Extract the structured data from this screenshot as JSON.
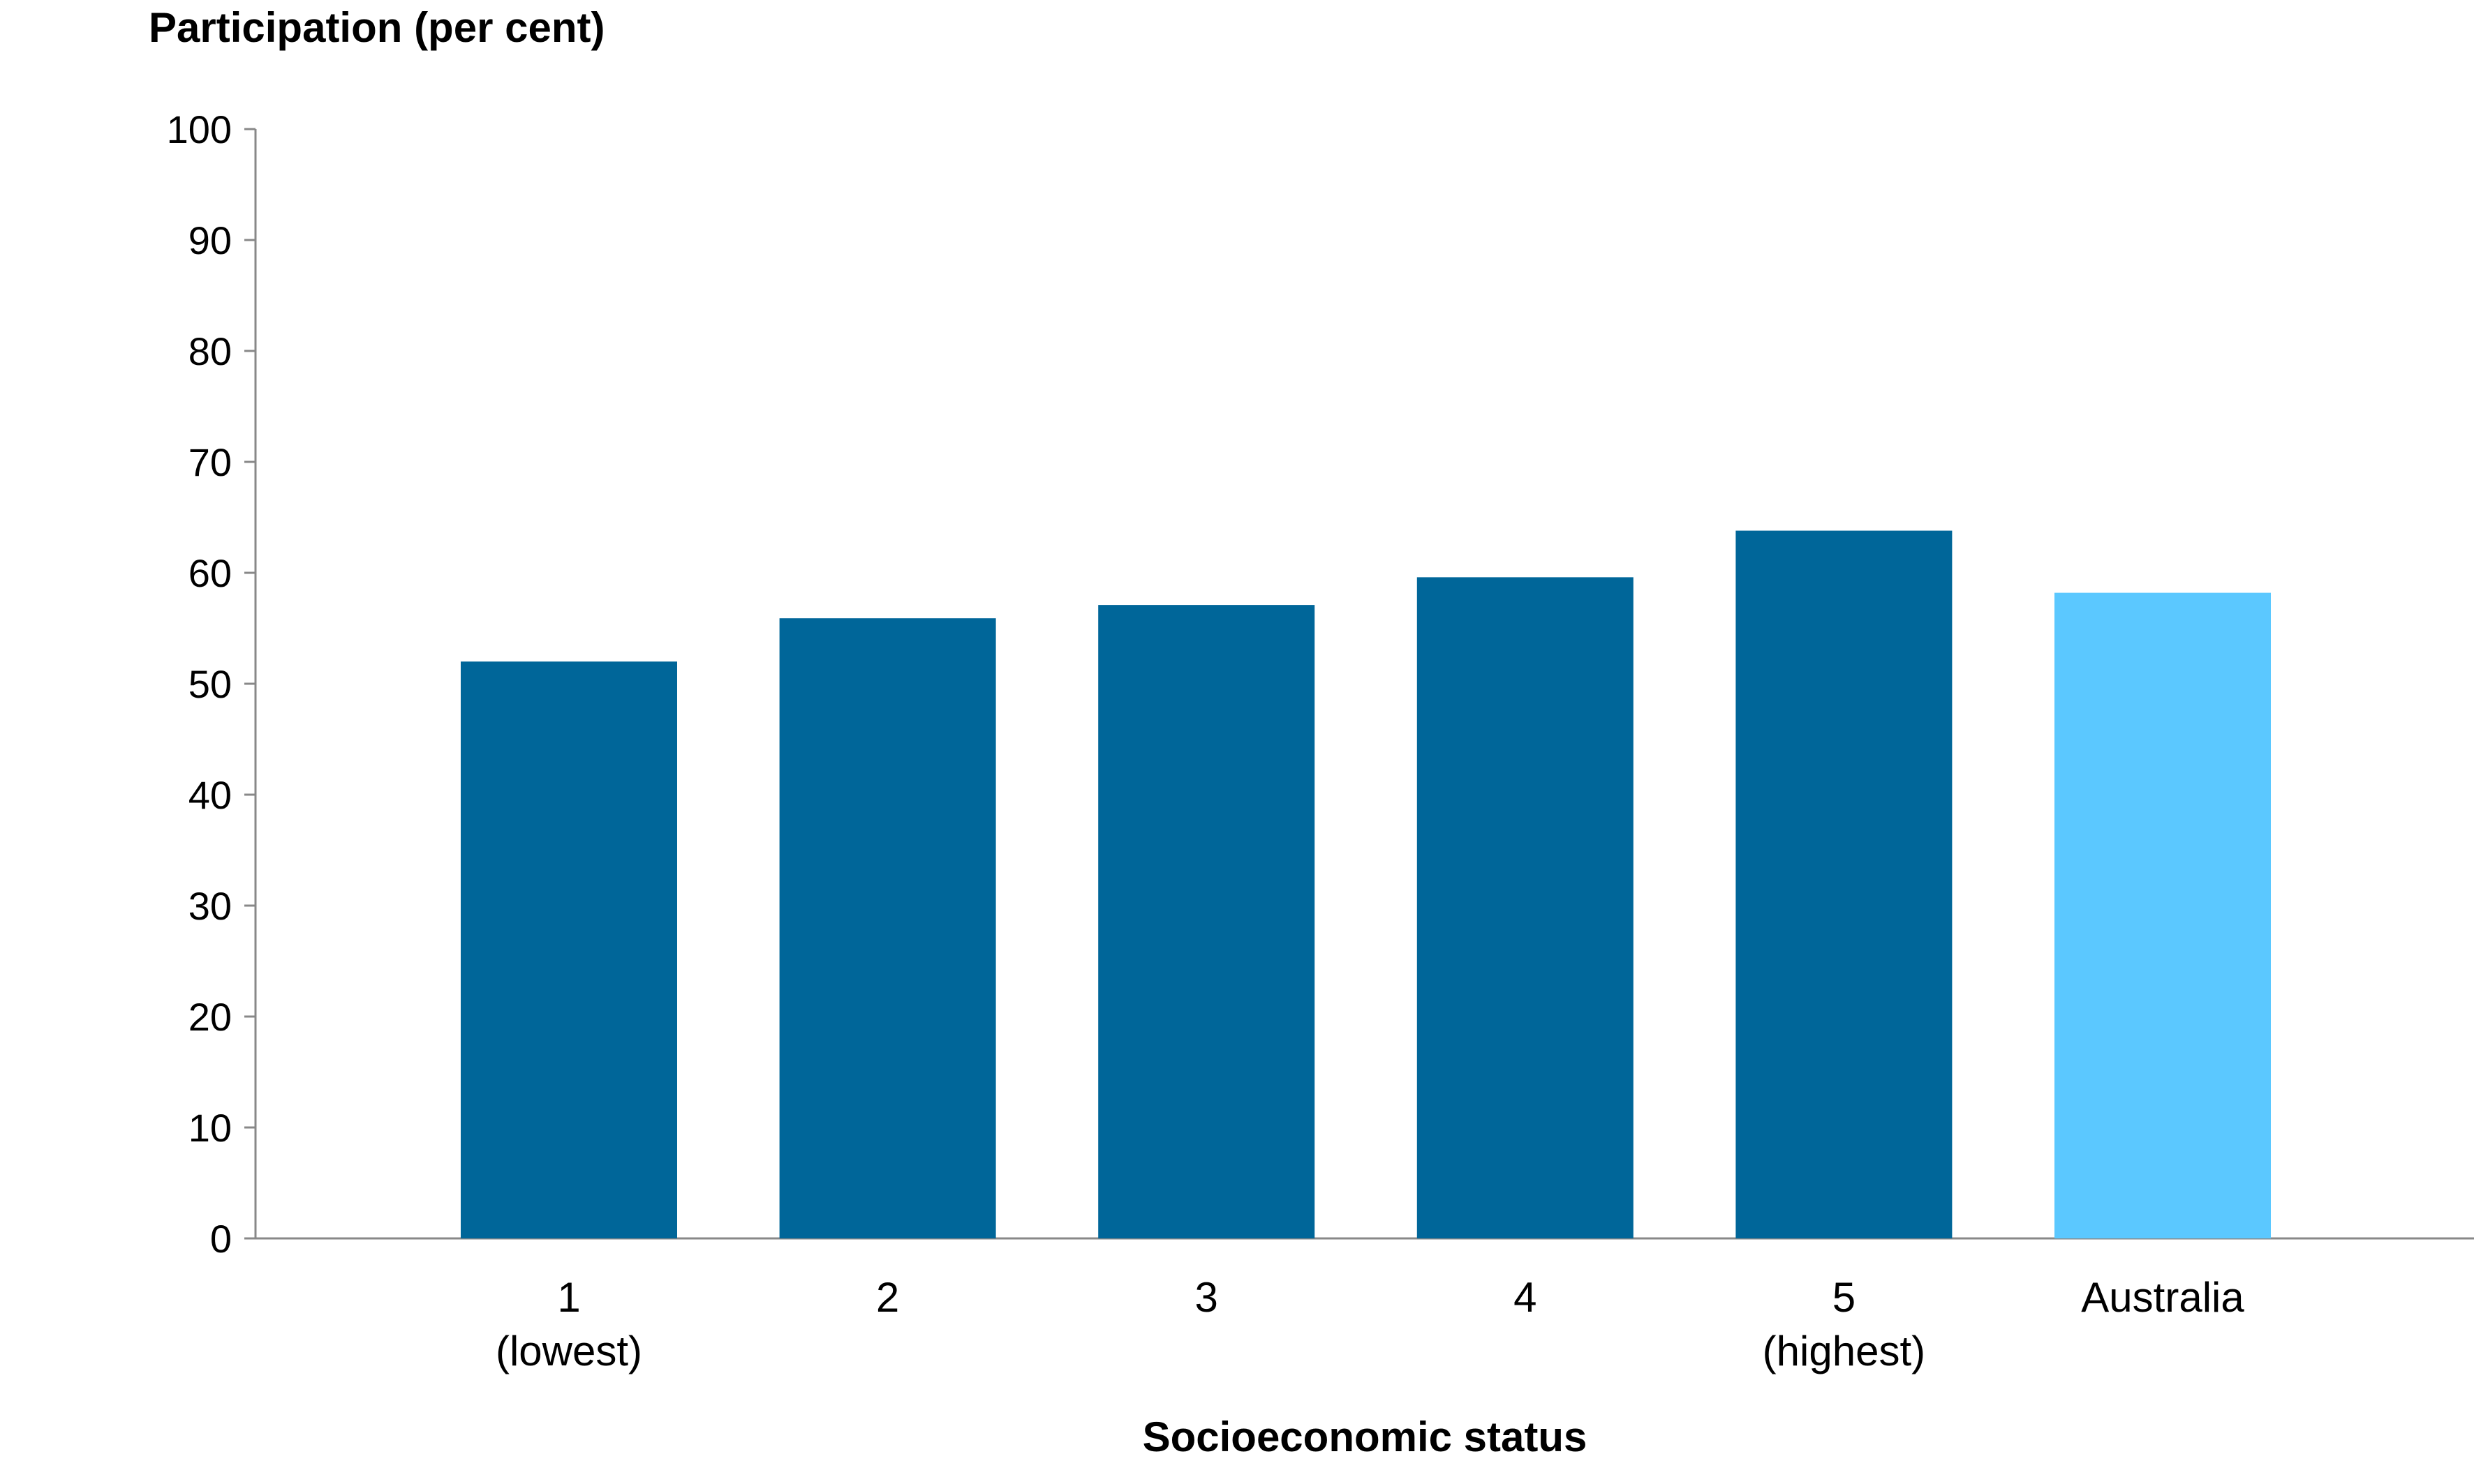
{
  "chart_data": {
    "type": "bar",
    "ylabel": "Participation (per cent)",
    "xlabel": "Socioeconomic status",
    "ylim": [
      0,
      100
    ],
    "y_ticks": [
      0,
      10,
      20,
      30,
      40,
      50,
      60,
      70,
      80,
      90,
      100
    ],
    "grid": false,
    "categories": [
      {
        "label": "1",
        "sublabel": "(lowest)"
      },
      {
        "label": "2",
        "sublabel": ""
      },
      {
        "label": "3",
        "sublabel": ""
      },
      {
        "label": "4",
        "sublabel": ""
      },
      {
        "label": "5",
        "sublabel": "(highest)"
      },
      {
        "label": "Australia",
        "sublabel": ""
      }
    ],
    "values": [
      52.0,
      55.9,
      57.1,
      59.6,
      63.8,
      58.2
    ],
    "bar_colors": [
      "#006699",
      "#006699",
      "#006699",
      "#006699",
      "#006699",
      "#5BC8FF"
    ],
    "axis_color": "#888888"
  }
}
